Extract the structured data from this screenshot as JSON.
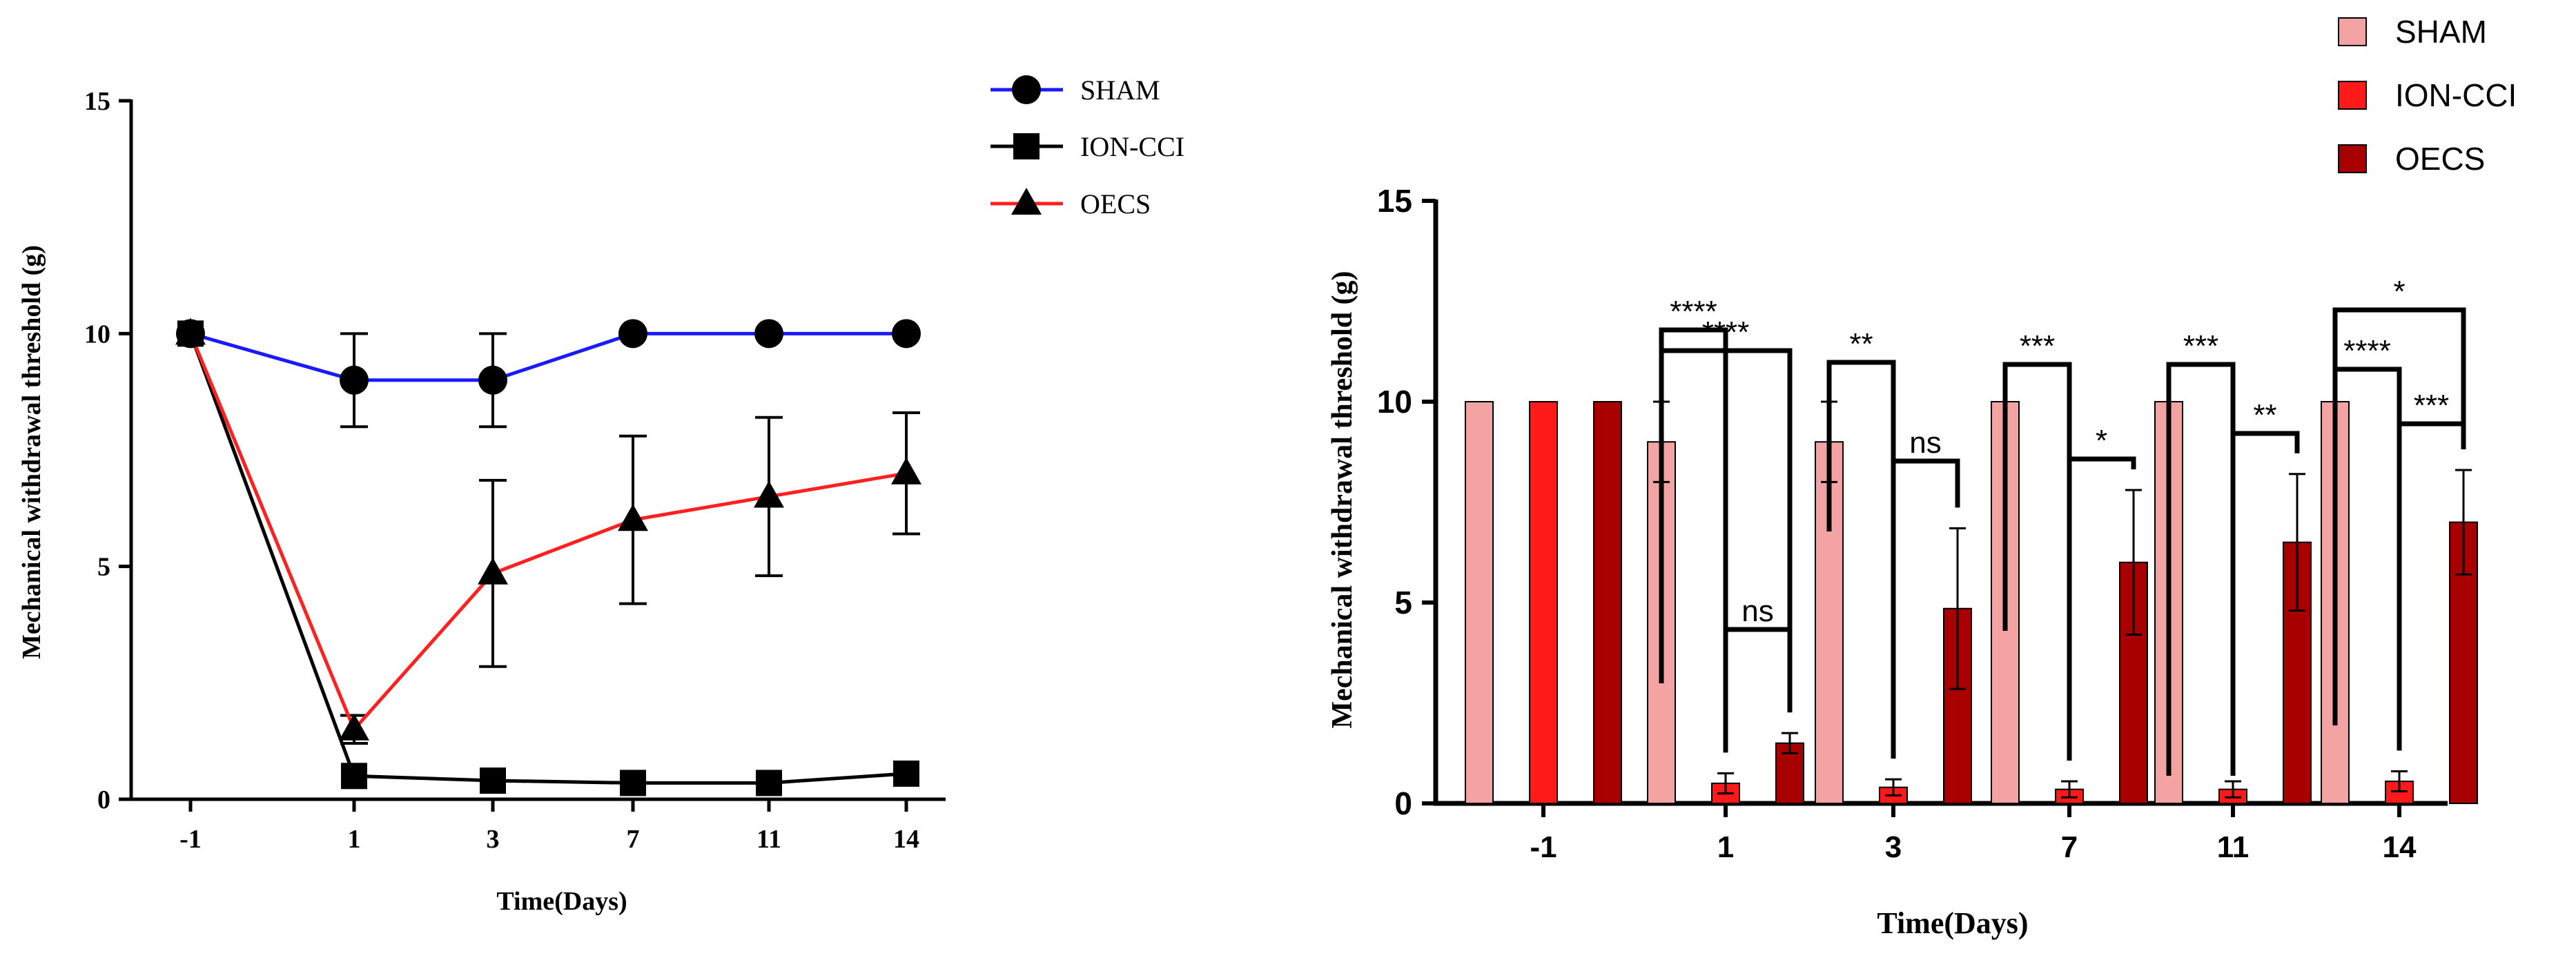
{
  "chart_data": [
    {
      "type": "line",
      "title": "",
      "xlabel": "Time(Days)",
      "ylabel": "Mechanical withdrawal threshold (g)",
      "categories": [
        "-1",
        "1",
        "3",
        "7",
        "11",
        "14"
      ],
      "ylim": [
        0,
        15
      ],
      "yticks": [
        "0",
        "5",
        "10",
        "15"
      ],
      "grid": false,
      "legend_position": "top-right",
      "series": [
        {
          "name": "SHAM",
          "marker": "circle",
          "color": "#1a1aff",
          "values": [
            10,
            9,
            9,
            10,
            10,
            10
          ],
          "errors": [
            0,
            1,
            1,
            0,
            0,
            0
          ]
        },
        {
          "name": "ION-CCI",
          "marker": "square",
          "color": "#000000",
          "values": [
            10,
            0.5,
            0.4,
            0.35,
            0.35,
            0.55
          ],
          "errors": [
            0,
            0,
            0,
            0,
            0,
            0
          ]
        },
        {
          "name": "OECS",
          "marker": "triangle",
          "color": "#ff2020",
          "values": [
            10,
            1.5,
            4.85,
            6,
            6.5,
            7
          ],
          "errors": [
            0,
            0.3,
            2,
            1.8,
            1.7,
            1.3
          ]
        }
      ]
    },
    {
      "type": "bar",
      "title": "",
      "xlabel": "Time(Days)",
      "ylabel": "Mechanical withdrawal threshold (g)",
      "categories": [
        "-1",
        "1",
        "3",
        "7",
        "11",
        "14"
      ],
      "ylim": [
        0,
        15
      ],
      "yticks": [
        "0",
        "5",
        "10",
        "15"
      ],
      "grid": false,
      "legend_position": "top-right",
      "series": [
        {
          "name": "SHAM",
          "color": "#f4a3a3",
          "values": [
            10,
            9,
            9,
            10,
            10,
            10
          ],
          "errors": [
            0,
            1,
            1,
            0,
            0,
            0
          ]
        },
        {
          "name": "ION-CCI",
          "color": "#ff1a1a",
          "values": [
            10,
            0.5,
            0.4,
            0.35,
            0.35,
            0.55
          ],
          "errors": [
            0,
            0.25,
            0.2,
            0.2,
            0.2,
            0.25
          ]
        },
        {
          "name": "OECS",
          "color": "#a80000",
          "values": [
            10,
            1.5,
            4.85,
            6,
            6.5,
            7
          ],
          "errors": [
            0,
            0.25,
            2,
            1.8,
            1.7,
            1.3
          ]
        }
      ],
      "annotations": [
        {
          "category": "1",
          "from": "SHAM",
          "to": "ION-CCI",
          "label": "****"
        },
        {
          "category": "1",
          "from": "SHAM",
          "to": "OECS",
          "label": "****"
        },
        {
          "category": "1",
          "from": "ION-CCI",
          "to": "OECS",
          "label": "ns"
        },
        {
          "category": "3",
          "from": "SHAM",
          "to": "ION-CCI",
          "label": "**"
        },
        {
          "category": "3",
          "from": "ION-CCI",
          "to": "OECS",
          "label": "ns"
        },
        {
          "category": "7",
          "from": "SHAM",
          "to": "ION-CCI",
          "label": "***"
        },
        {
          "category": "7",
          "from": "ION-CCI",
          "to": "OECS",
          "label": "*"
        },
        {
          "category": "11",
          "from": "SHAM",
          "to": "ION-CCI",
          "label": "***"
        },
        {
          "category": "11",
          "from": "ION-CCI",
          "to": "OECS",
          "label": "**"
        },
        {
          "category": "14",
          "from": "SHAM",
          "to": "OECS",
          "label": "*"
        },
        {
          "category": "14",
          "from": "SHAM",
          "to": "ION-CCI",
          "label": "****"
        },
        {
          "category": "14",
          "from": "ION-CCI",
          "to": "OECS",
          "label": "***"
        }
      ]
    }
  ]
}
